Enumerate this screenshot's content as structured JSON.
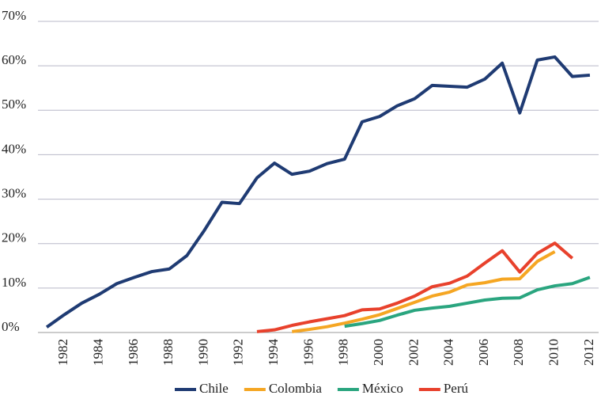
{
  "chart_data": {
    "type": "line",
    "categories": [
      null,
      "1982",
      null,
      "1984",
      null,
      "1986",
      null,
      "1988",
      null,
      "1990",
      null,
      "1992",
      null,
      "1994",
      null,
      "1996",
      null,
      "1998",
      null,
      "2000",
      null,
      "2002",
      null,
      "2004",
      null,
      "2006",
      null,
      "2008",
      null,
      "2010",
      null,
      "2012"
    ],
    "series": [
      {
        "name": "Chile",
        "color": "#1f3b73",
        "values": [
          1.2,
          4,
          6.6,
          8.6,
          11,
          12.4,
          13.7,
          14.3,
          17.3,
          23,
          29.3,
          29,
          34.8,
          38.1,
          35.6,
          36.3,
          38,
          39,
          47.4,
          48.6,
          51,
          52.6,
          55.6,
          55.4,
          55.2,
          57,
          60.6,
          49.4,
          61.3,
          62,
          57.6,
          57.9
        ]
      },
      {
        "name": "Colombia",
        "color": "#f5a623",
        "values": [
          null,
          null,
          null,
          null,
          null,
          null,
          null,
          null,
          null,
          null,
          null,
          null,
          null,
          null,
          0.2,
          0.7,
          1.3,
          2.1,
          3,
          4,
          5.4,
          6.8,
          8.2,
          9.1,
          10.7,
          11.2,
          12,
          12.1,
          16,
          18.2,
          null,
          null
        ]
      },
      {
        "name": "México",
        "color": "#2aa57f",
        "values": [
          null,
          null,
          null,
          null,
          null,
          null,
          null,
          null,
          null,
          null,
          null,
          null,
          null,
          null,
          null,
          null,
          null,
          1.4,
          2,
          2.7,
          3.9,
          5,
          5.5,
          5.9,
          6.6,
          7.3,
          7.7,
          7.8,
          9.6,
          10.5,
          11,
          12.4
        ]
      },
      {
        "name": "Perú",
        "color": "#e8412c",
        "values": [
          null,
          null,
          null,
          null,
          null,
          null,
          null,
          null,
          null,
          null,
          null,
          null,
          0.2,
          0.6,
          1.6,
          2.4,
          3.1,
          3.8,
          5.1,
          5.3,
          6.6,
          8.2,
          10.3,
          11.1,
          12.7,
          15.6,
          18.4,
          13.6,
          17.8,
          20.1,
          16.7,
          null
        ]
      }
    ],
    "ylim": [
      0,
      70
    ],
    "yticks": [
      {
        "value": 0,
        "label": "0%"
      },
      {
        "value": 10,
        "label": "10%"
      },
      {
        "value": 20,
        "label": "20%"
      },
      {
        "value": 30,
        "label": "30%"
      },
      {
        "value": 40,
        "label": "40%"
      },
      {
        "value": 50,
        "label": "50%"
      },
      {
        "value": 60,
        "label": "60%"
      },
      {
        "value": 70,
        "label": "70%"
      }
    ],
    "grid": true,
    "legend": "bottom"
  }
}
